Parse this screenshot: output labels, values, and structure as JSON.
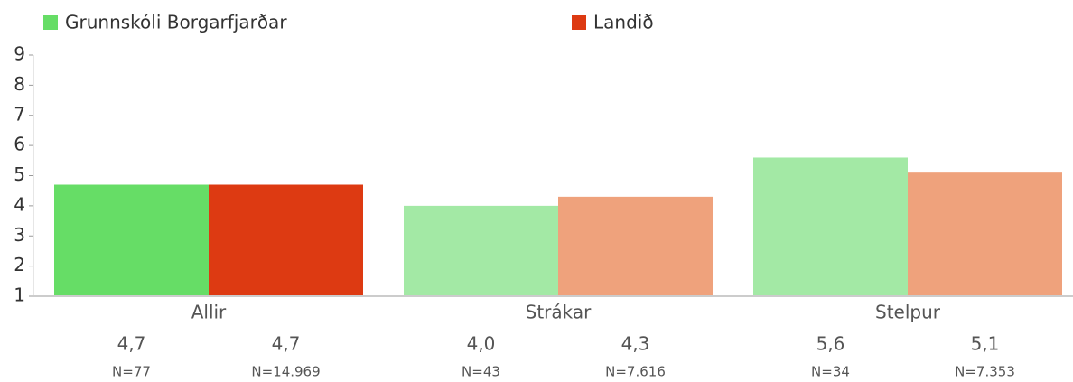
{
  "chart_data": {
    "type": "bar",
    "categories": [
      "Allir",
      "Strákar",
      "Stelpur"
    ],
    "series": [
      {
        "name": "Grunnskóli Borgarfjarðar",
        "color": "#66dd66",
        "colors": [
          "#66dd66",
          "#a3e9a5",
          "#a3e9a5"
        ],
        "values": [
          4.7,
          4.0,
          5.6
        ],
        "value_labels": [
          "4,7",
          "4,0",
          "5,6"
        ],
        "n_labels": [
          "N=77",
          "N=43",
          "N=34"
        ]
      },
      {
        "name": "Landið",
        "color": "#dd3a12",
        "colors": [
          "#dd3a12",
          "#efa27c",
          "#efa27c"
        ],
        "values": [
          4.7,
          4.3,
          5.1
        ],
        "value_labels": [
          "4,7",
          "4,3",
          "5,1"
        ],
        "n_labels": [
          "N=14.969",
          "N=7.616",
          "N=7.353"
        ]
      }
    ],
    "ylim": [
      1,
      9
    ],
    "yticks": [
      1,
      2,
      3,
      4,
      5,
      6,
      7,
      8,
      9
    ]
  }
}
